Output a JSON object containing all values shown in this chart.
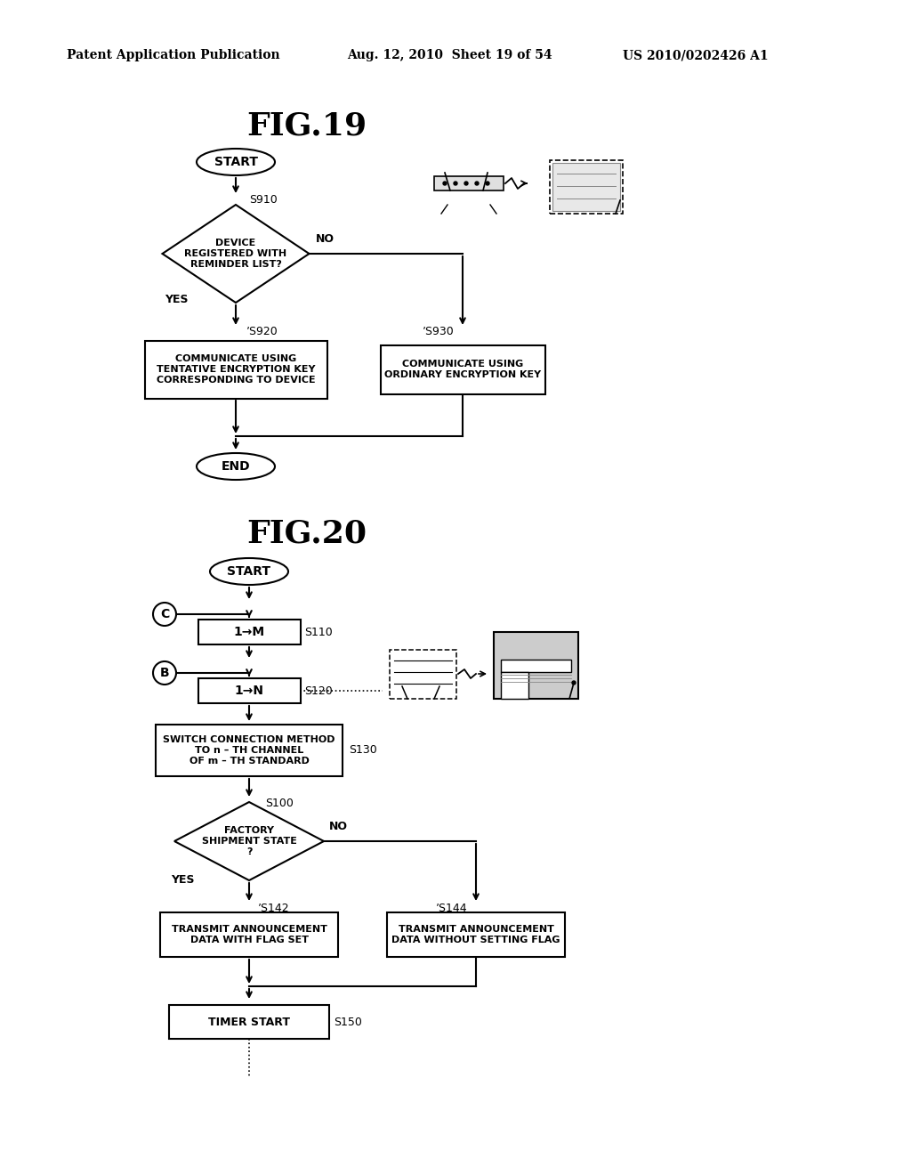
{
  "background_color": "#ffffff",
  "header_left": "Patent Application Publication",
  "header_center": "Aug. 12, 2010  Sheet 19 of 54",
  "header_right": "US 2010/0202426 A1",
  "fig19_title": "FIG.19",
  "fig20_title": "FIG.20"
}
